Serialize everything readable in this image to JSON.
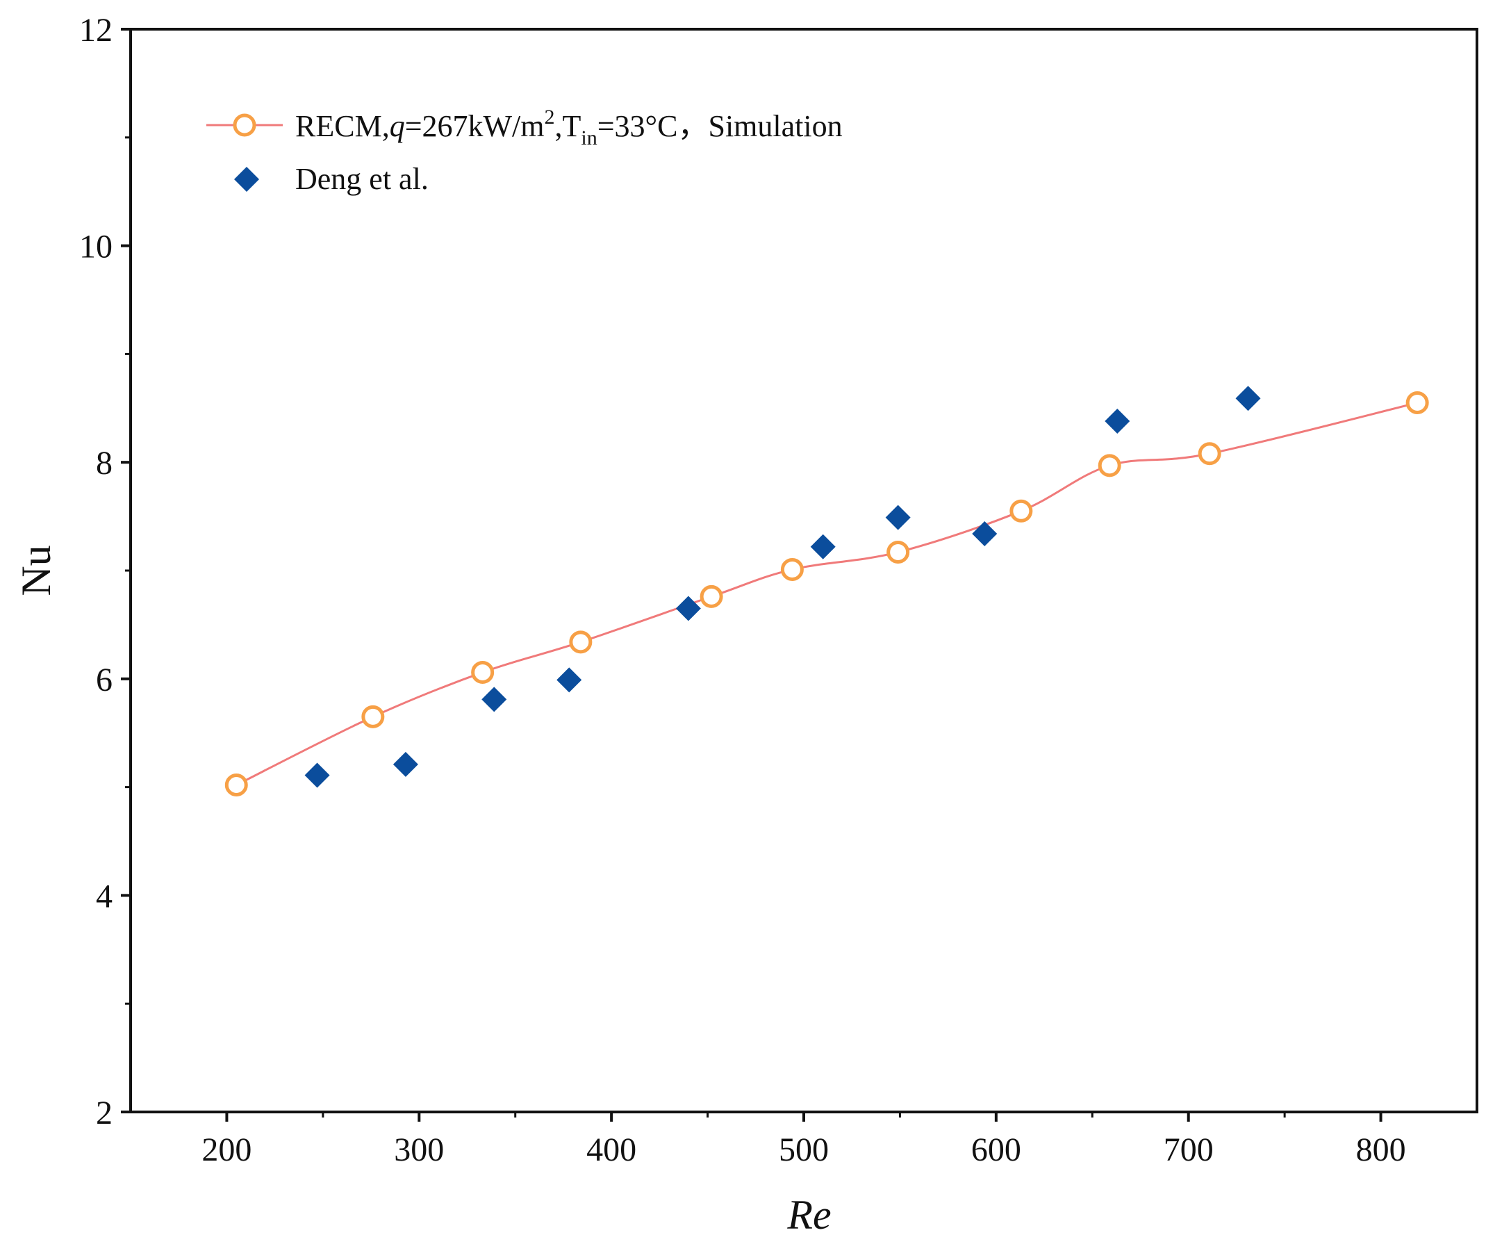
{
  "chart_data": {
    "type": "scatter",
    "xlabel": "Re",
    "ylabel": "Nu",
    "xlim": [
      150,
      850
    ],
    "ylim": [
      2,
      12
    ],
    "x_ticks": [
      200,
      300,
      400,
      500,
      600,
      700,
      800
    ],
    "y_ticks": [
      2,
      4,
      6,
      8,
      10,
      12
    ],
    "y_minor_ticks": [
      3,
      5,
      7,
      9,
      11
    ],
    "x_minor_ticks": [
      250,
      350,
      450,
      550,
      650,
      750
    ],
    "legend": {
      "position": "top-left",
      "simulation_label_parts": [
        "RECM,",
        "q",
        "=267kW/m",
        "2",
        ",T",
        "in",
        "=33°C，Simulation"
      ],
      "experiment_label": "Deng et al."
    },
    "series": [
      {
        "name": "RECM,q=267kW/m2,Tin=33°C，Simulation",
        "marker": "open-circle",
        "line": true,
        "line_color": "#f07a7a",
        "marker_color": "#f7a046",
        "x": [
          205,
          276,
          333,
          384,
          452,
          494,
          549,
          613,
          659,
          711,
          819
        ],
        "y": [
          5.02,
          5.65,
          6.06,
          6.34,
          6.76,
          7.01,
          7.17,
          7.55,
          7.97,
          8.08,
          8.55
        ]
      },
      {
        "name": "Deng et al.",
        "marker": "filled-diamond",
        "line": false,
        "marker_color": "#0b4d9c",
        "x": [
          247,
          293,
          339,
          378,
          440,
          510,
          549,
          594,
          663,
          731
        ],
        "y": [
          5.11,
          5.21,
          5.81,
          5.99,
          6.65,
          7.22,
          7.49,
          7.34,
          8.38,
          8.59
        ]
      }
    ]
  }
}
